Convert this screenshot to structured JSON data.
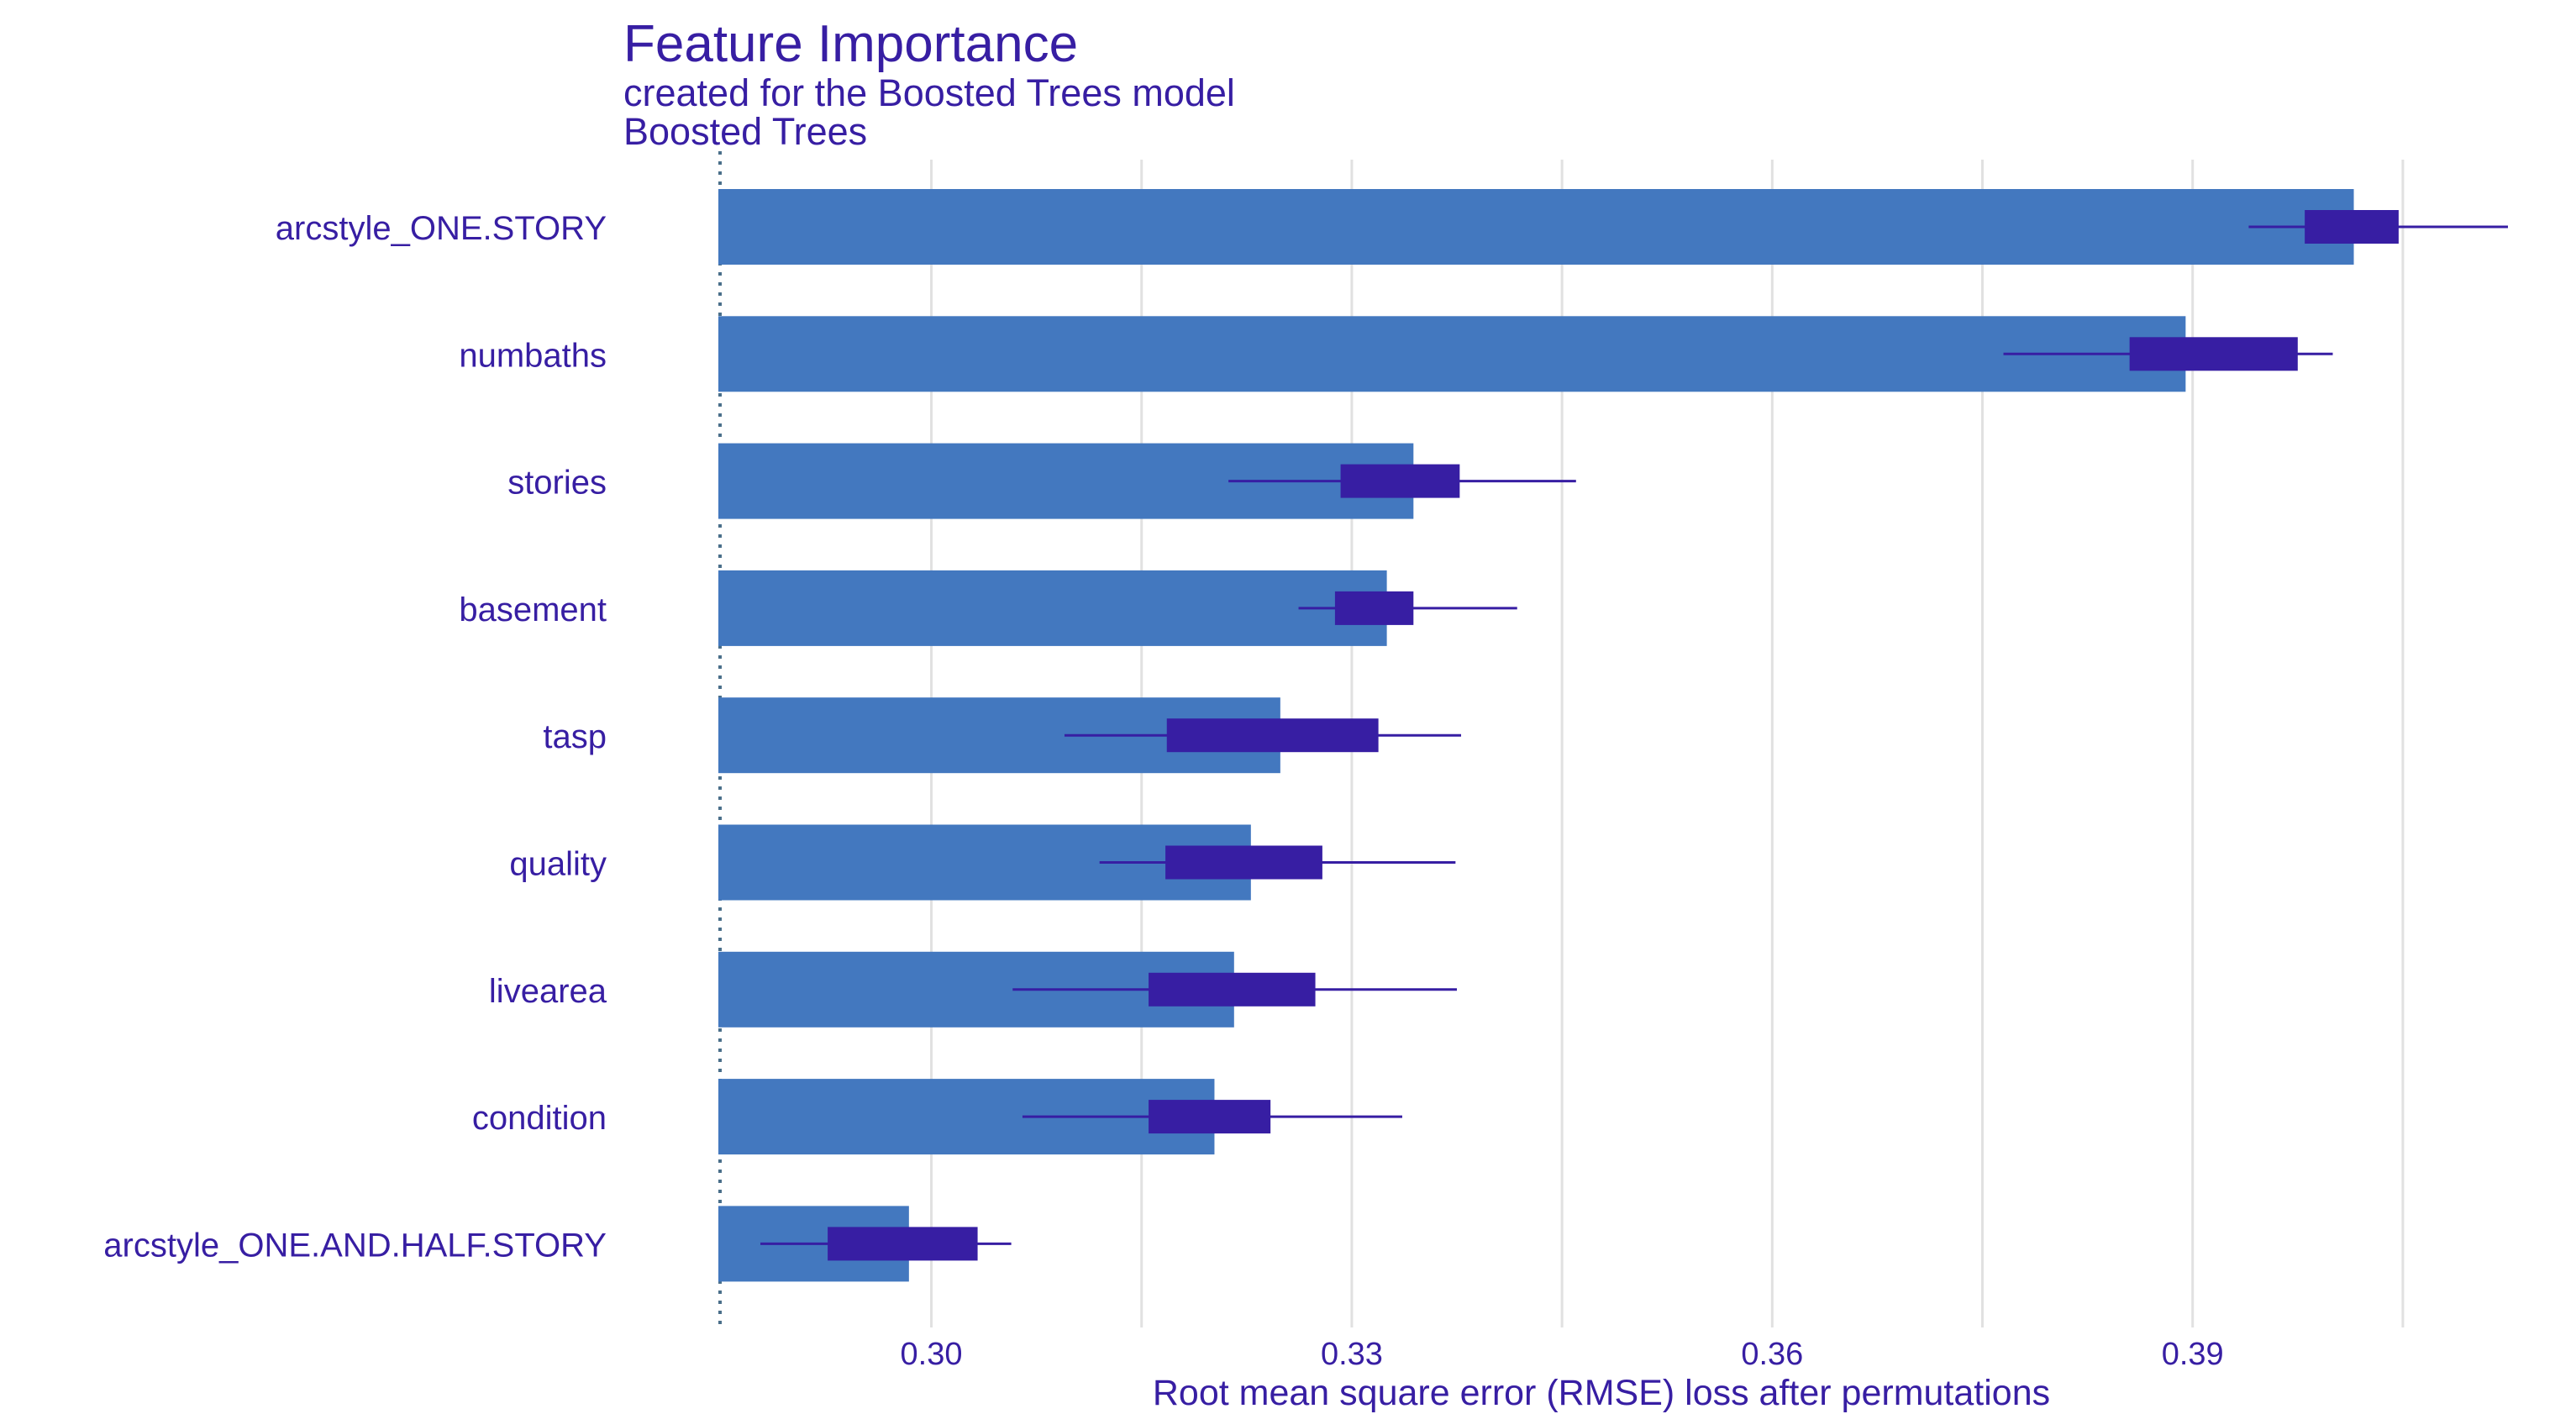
{
  "chart_data": {
    "type": "bar",
    "title": "Feature Importance",
    "subtitle": "created for the Boosted Trees model",
    "model_label": "Boosted Trees",
    "xlabel": "Root mean square error (RMSE) loss after permutations",
    "ylabel": "",
    "baseline": 0.2848,
    "xlim": [
      0.2848,
      0.4125
    ],
    "xticks": [
      0.3,
      0.33,
      0.36,
      0.39
    ],
    "xtick_labels": [
      "0.30",
      "0.33",
      "0.36",
      "0.39"
    ],
    "grid": true,
    "colors": {
      "bar": "#4378bf",
      "box": "#371ea3",
      "text": "#371ea3",
      "grid": "#e1e1e1",
      "baseline": "#4a6f8a"
    },
    "categories": [
      "arcstyle_ONE.STORY",
      "numbaths",
      "stories",
      "basement",
      "tasp",
      "quality",
      "livearea",
      "condition",
      "arcstyle_ONE.AND.HALF.STORY"
    ],
    "values": [
      0.4015,
      0.3895,
      0.3344,
      0.3325,
      0.3249,
      0.3228,
      0.3216,
      0.3202,
      0.2984
    ],
    "boxplots": [
      {
        "min": 0.394,
        "q1": 0.398,
        "q3": 0.4047,
        "max": 0.4125
      },
      {
        "min": 0.3765,
        "q1": 0.3855,
        "q3": 0.3975,
        "max": 0.4
      },
      {
        "min": 0.3212,
        "q1": 0.3292,
        "q3": 0.3377,
        "max": 0.346
      },
      {
        "min": 0.3262,
        "q1": 0.3288,
        "q3": 0.3344,
        "max": 0.3418
      },
      {
        "min": 0.3095,
        "q1": 0.3168,
        "q3": 0.3319,
        "max": 0.3378
      },
      {
        "min": 0.312,
        "q1": 0.3167,
        "q3": 0.3279,
        "max": 0.3374
      },
      {
        "min": 0.3058,
        "q1": 0.3155,
        "q3": 0.3274,
        "max": 0.3375
      },
      {
        "min": 0.3065,
        "q1": 0.3155,
        "q3": 0.3242,
        "max": 0.3336
      },
      {
        "min": 0.2878,
        "q1": 0.2926,
        "q3": 0.3033,
        "max": 0.3057
      }
    ]
  }
}
